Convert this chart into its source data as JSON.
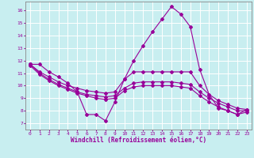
{
  "bg_color": "#c8eef0",
  "line_color": "#990099",
  "grid_color": "#ffffff",
  "xlabel": "Windchill (Refroidissement éolien,°C)",
  "xlim": [
    -0.5,
    23.5
  ],
  "ylim": [
    6.5,
    16.7
  ],
  "yticks": [
    7,
    8,
    9,
    10,
    11,
    12,
    13,
    14,
    15,
    16
  ],
  "xticks": [
    0,
    1,
    2,
    3,
    4,
    5,
    6,
    7,
    8,
    9,
    10,
    11,
    12,
    13,
    14,
    15,
    16,
    17,
    18,
    19,
    20,
    21,
    22,
    23
  ],
  "line1_x": [
    0,
    1,
    2,
    3,
    4,
    5,
    6,
    7,
    8,
    9,
    10,
    11,
    12,
    13,
    14,
    15,
    16,
    17,
    18,
    19,
    20,
    21,
    22,
    23
  ],
  "line1_y": [
    11.7,
    11.7,
    11.1,
    10.7,
    10.2,
    9.5,
    7.7,
    7.7,
    7.2,
    8.7,
    10.5,
    12.0,
    13.2,
    14.3,
    15.3,
    16.3,
    15.7,
    14.7,
    11.3,
    9.3,
    8.2,
    8.0,
    7.7,
    8.1
  ],
  "line2_x": [
    0,
    1,
    2,
    3,
    4,
    5,
    6,
    7,
    8,
    9,
    10,
    11,
    12,
    13,
    14,
    15,
    16,
    17,
    18,
    19,
    20,
    21,
    22,
    23
  ],
  "line2_y": [
    11.7,
    11.1,
    10.7,
    10.3,
    10.0,
    9.8,
    9.6,
    9.5,
    9.4,
    9.5,
    10.5,
    11.1,
    11.1,
    11.1,
    11.1,
    11.1,
    11.1,
    11.1,
    10.0,
    9.3,
    8.8,
    8.5,
    8.2,
    8.1
  ],
  "line3_x": [
    0,
    1,
    2,
    3,
    4,
    5,
    6,
    7,
    8,
    9,
    10,
    11,
    12,
    13,
    14,
    15,
    16,
    17,
    18,
    19,
    20,
    21,
    22,
    23
  ],
  "line3_y": [
    11.7,
    11.0,
    10.5,
    10.1,
    9.8,
    9.5,
    9.3,
    9.2,
    9.1,
    9.2,
    9.8,
    10.2,
    10.3,
    10.3,
    10.3,
    10.3,
    10.2,
    10.1,
    9.5,
    9.0,
    8.6,
    8.3,
    8.0,
    8.0
  ],
  "line4_x": [
    0,
    1,
    2,
    3,
    4,
    5,
    6,
    7,
    8,
    9,
    10,
    11,
    12,
    13,
    14,
    15,
    16,
    17,
    18,
    19,
    20,
    21,
    22,
    23
  ],
  "line4_y": [
    11.6,
    10.9,
    10.4,
    10.0,
    9.7,
    9.4,
    9.2,
    9.0,
    8.9,
    9.0,
    9.6,
    9.9,
    10.0,
    10.0,
    10.0,
    10.0,
    9.9,
    9.8,
    9.2,
    8.7,
    8.3,
    8.0,
    7.7,
    7.9
  ]
}
